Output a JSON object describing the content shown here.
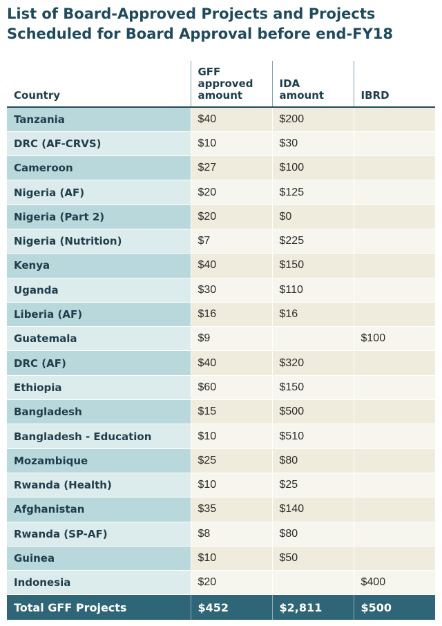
{
  "title": {
    "line1": "List of Board-Approved Projects and Projects",
    "line2": "Scheduled for Board Approval before end-FY18"
  },
  "headers": {
    "country": "Country",
    "gff_line1": "GFF",
    "gff_line2": "approved",
    "gff_line3": "amount",
    "ida_line1": "IDA",
    "ida_line2": "amount",
    "ibrd": "IBRD"
  },
  "rows": [
    {
      "country": "Tanzania",
      "gff": "$40",
      "ida": "$200",
      "ibrd": ""
    },
    {
      "country": "DRC (AF-CRVS)",
      "gff": "$10",
      "ida": "$30",
      "ibrd": ""
    },
    {
      "country": "Cameroon",
      "gff": "$27",
      "ida": "$100",
      "ibrd": ""
    },
    {
      "country": "Nigeria (AF)",
      "gff": "$20",
      "ida": "$125",
      "ibrd": ""
    },
    {
      "country": "Nigeria (Part 2)",
      "gff": "$20",
      "ida": "$0",
      "ibrd": ""
    },
    {
      "country": "Nigeria (Nutrition)",
      "gff": "$7",
      "ida": "$225",
      "ibrd": ""
    },
    {
      "country": "Kenya",
      "gff": "$40",
      "ida": "$150",
      "ibrd": ""
    },
    {
      "country": "Uganda",
      "gff": "$30",
      "ida": "$110",
      "ibrd": ""
    },
    {
      "country": "Liberia (AF)",
      "gff": "$16",
      "ida": "$16",
      "ibrd": ""
    },
    {
      "country": "Guatemala",
      "gff": "$9",
      "ida": "",
      "ibrd": "$100"
    },
    {
      "country": "DRC (AF)",
      "gff": "$40",
      "ida": "$320",
      "ibrd": ""
    },
    {
      "country": "Ethiopia",
      "gff": "$60",
      "ida": "$150",
      "ibrd": ""
    },
    {
      "country": "Bangladesh",
      "gff": "$15",
      "ida": "$500",
      "ibrd": ""
    },
    {
      "country": "Bangladesh - Education",
      "gff": "$10",
      "ida": "$510",
      "ibrd": ""
    },
    {
      "country": "Mozambique",
      "gff": "$25",
      "ida": "$80",
      "ibrd": ""
    },
    {
      "country": "Rwanda (Health)",
      "gff": "$10",
      "ida": "$25",
      "ibrd": ""
    },
    {
      "country": "Afghanistan",
      "gff": "$35",
      "ida": "$140",
      "ibrd": ""
    },
    {
      "country": "Rwanda (SP-AF)",
      "gff": "$8",
      "ida": "$80",
      "ibrd": ""
    },
    {
      "country": "Guinea",
      "gff": "$10",
      "ida": "$50",
      "ibrd": ""
    },
    {
      "country": "Indonesia",
      "gff": "$20",
      "ida": "",
      "ibrd": "$400"
    }
  ],
  "total": {
    "label": "Total GFF Projects",
    "gff": "$452",
    "ida": "$2,811",
    "ibrd": "$500"
  },
  "colors": {
    "header_text": "#1f3d4a",
    "total_bg": "#2e6577",
    "country_band_a": "#b8d8db",
    "country_band_b": "#dcecec",
    "value_band_a": "#f0ecdd",
    "value_band_b": "#f7f6ee"
  }
}
